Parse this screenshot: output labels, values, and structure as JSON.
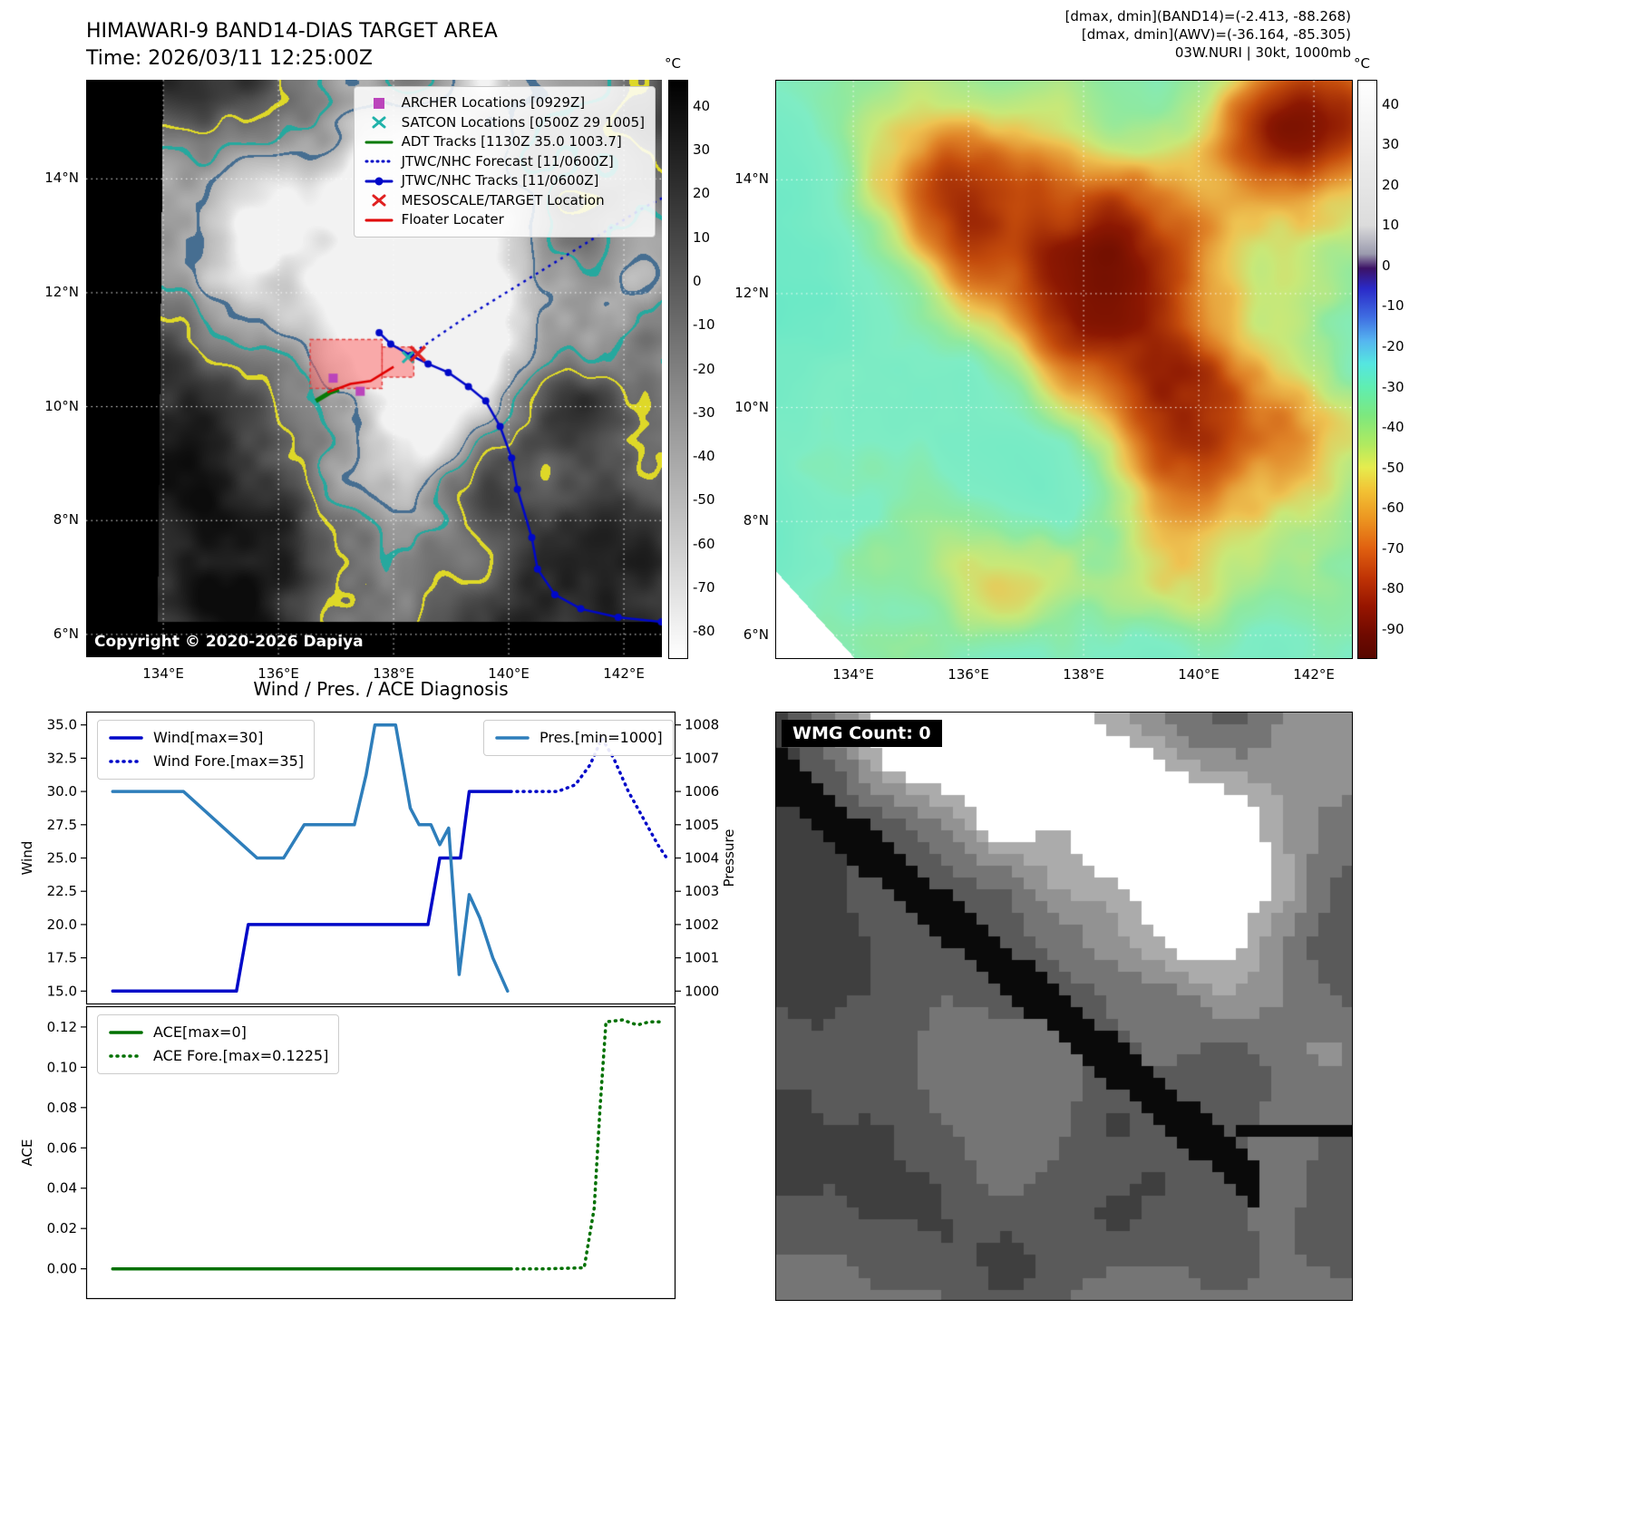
{
  "chart_data": [
    {
      "type": "line",
      "title": "Wind / Pres. / ACE Diagnosis",
      "subplot": "wind_pressure",
      "ylabel": "Wind",
      "y2label": "Pressure",
      "ylim": [
        14.0,
        36.0
      ],
      "yticks": [
        15.0,
        17.5,
        20.0,
        22.5,
        25.0,
        27.5,
        30.0,
        32.5,
        35.0
      ],
      "ytick_decimals": 1,
      "y2lim": [
        999.6,
        1008.4
      ],
      "y2ticks": [
        1000,
        1001,
        1002,
        1003,
        1004,
        1005,
        1006,
        1007,
        1008
      ],
      "y2tick_decimals": 0,
      "x_normalized": true,
      "grid": false,
      "legend_left": [
        0,
        1
      ],
      "legend_right": [
        2
      ],
      "series": [
        {
          "name": "Wind[max=30]",
          "axis": "left",
          "color": "#0008c8",
          "dash": false,
          "width": 3.5,
          "points": [
            [
              0.045,
              15
            ],
            [
              0.255,
              15
            ],
            [
              0.275,
              20
            ],
            [
              0.58,
              20
            ],
            [
              0.6,
              25
            ],
            [
              0.635,
              25
            ],
            [
              0.65,
              30
            ],
            [
              0.72,
              30
            ]
          ]
        },
        {
          "name": "Wind Fore.[max=35]",
          "axis": "left",
          "color": "#0008c8",
          "dash": true,
          "width": 3.5,
          "points": [
            [
              0.72,
              30
            ],
            [
              0.8,
              30
            ],
            [
              0.83,
              30.5
            ],
            [
              0.855,
              32
            ],
            [
              0.875,
              34
            ],
            [
              0.895,
              32.5
            ],
            [
              0.92,
              30
            ],
            [
              0.945,
              28
            ],
            [
              0.97,
              26
            ],
            [
              0.985,
              25
            ]
          ]
        },
        {
          "name": "Pres.[min=1000]",
          "axis": "right",
          "color": "#2e7ebb",
          "dash": false,
          "width": 3.5,
          "points": [
            [
              0.045,
              1006
            ],
            [
              0.165,
              1006
            ],
            [
              0.29,
              1004
            ],
            [
              0.335,
              1004
            ],
            [
              0.37,
              1005
            ],
            [
              0.455,
              1005
            ],
            [
              0.475,
              1006.5
            ],
            [
              0.49,
              1008
            ],
            [
              0.525,
              1008
            ],
            [
              0.55,
              1005.5
            ],
            [
              0.565,
              1005
            ],
            [
              0.585,
              1005
            ],
            [
              0.6,
              1004.4
            ],
            [
              0.615,
              1004.9
            ],
            [
              0.633,
              1000.5
            ],
            [
              0.65,
              1002.9
            ],
            [
              0.668,
              1002.2
            ],
            [
              0.69,
              1001
            ],
            [
              0.715,
              1000
            ]
          ]
        }
      ]
    },
    {
      "type": "line",
      "subplot": "ace",
      "ylabel": "ACE",
      "ylim": [
        -0.015,
        0.1303
      ],
      "yticks": [
        0.0,
        0.02,
        0.04,
        0.06,
        0.08,
        0.1,
        0.12
      ],
      "ytick_decimals": 2,
      "x_normalized": true,
      "grid": false,
      "legend_left": [
        0,
        1
      ],
      "series": [
        {
          "name": "ACE[max=0]",
          "axis": "left",
          "color": "#007000",
          "dash": false,
          "width": 3.5,
          "points": [
            [
              0.045,
              0
            ],
            [
              0.72,
              0
            ]
          ]
        },
        {
          "name": "ACE Fore.[max=0.1225]",
          "axis": "left",
          "color": "#007000",
          "dash": true,
          "width": 3.5,
          "points": [
            [
              0.72,
              0
            ],
            [
              0.78,
              0
            ],
            [
              0.845,
              0.0005
            ],
            [
              0.862,
              0.03
            ],
            [
              0.872,
              0.08
            ],
            [
              0.882,
              0.1225
            ],
            [
              0.91,
              0.1235
            ],
            [
              0.935,
              0.121
            ],
            [
              0.955,
              0.1225
            ],
            [
              0.975,
              0.1225
            ]
          ]
        }
      ]
    }
  ],
  "panel_band14": {
    "title": "HIMAWARI-9 BAND14-DIAS TARGET AREA",
    "time_line": "Time: 2026/03/11 12:25:00Z",
    "copyright": "Copyright © 2020-2026 Dapiya",
    "colorbar_unit": "°C",
    "colorbar_ticks": [
      40,
      30,
      20,
      10,
      0,
      -10,
      -20,
      -30,
      -40,
      -50,
      -60,
      -70,
      -80
    ],
    "colorbar_range": [
      46,
      -86
    ],
    "colorbar_stops": [
      [
        0,
        "#000000"
      ],
      [
        1,
        "#ffffff"
      ]
    ],
    "lat_ticks": [
      14,
      12,
      10,
      8,
      6
    ],
    "lon_ticks": [
      134,
      136,
      138,
      140,
      142
    ],
    "lat_tick_labels": [
      "14°N",
      "12°N",
      "10°N",
      "8°N",
      "6°N"
    ],
    "lon_tick_labels": [
      "134°E",
      "136°E",
      "138°E",
      "140°E",
      "142°E"
    ],
    "map_bounds": {
      "lon_min": 132.66,
      "lon_max": 142.66,
      "lat_min": 5.6,
      "lat_max": 15.74
    },
    "legend": [
      {
        "label": "ARCHER Locations [0929Z]",
        "marker": "square",
        "color": "#bb44bb"
      },
      {
        "label": "SATCON Locations [0500Z 29 1005]",
        "marker": "x",
        "color": "#20b2aa"
      },
      {
        "label": "ADT Tracks [1130Z 35.0 1003.7]",
        "marker": "line",
        "color": "#067a06"
      },
      {
        "label": "JTWC/NHC Forecast [11/0600Z]",
        "marker": "dotted-line",
        "color": "#0008c8"
      },
      {
        "label": "JTWC/NHC Tracks [11/0600Z]",
        "marker": "line-marker",
        "color": "#0008c8"
      },
      {
        "label": "MESOSCALE/TARGET Location",
        "marker": "x",
        "color": "#e02020"
      },
      {
        "label": "Floater Locater",
        "marker": "line",
        "color": "#e00000"
      }
    ],
    "track": [
      [
        137.75,
        11.3
      ],
      [
        137.95,
        11.1
      ],
      [
        138.3,
        10.9
      ],
      [
        138.6,
        10.75
      ],
      [
        138.95,
        10.6
      ],
      [
        139.3,
        10.35
      ],
      [
        139.6,
        10.1
      ],
      [
        139.85,
        9.65
      ],
      [
        140.05,
        9.1
      ],
      [
        140.15,
        8.55
      ],
      [
        140.4,
        7.7
      ],
      [
        140.5,
        7.15
      ],
      [
        140.8,
        6.7
      ],
      [
        141.25,
        6.45
      ],
      [
        141.9,
        6.3
      ],
      [
        142.65,
        6.22
      ]
    ],
    "forecast_track": [
      [
        138.35,
        10.95
      ],
      [
        139.15,
        11.5
      ],
      [
        139.95,
        12.0
      ],
      [
        140.75,
        12.5
      ],
      [
        141.55,
        13.0
      ],
      [
        142.35,
        13.5
      ],
      [
        142.66,
        13.66
      ]
    ],
    "adt_track": [
      [
        136.65,
        10.1
      ],
      [
        136.9,
        10.25
      ],
      [
        137.05,
        10.3
      ]
    ],
    "floater_line": [
      [
        136.85,
        10.25
      ],
      [
        137.25,
        10.4
      ],
      [
        137.6,
        10.45
      ],
      [
        138.0,
        10.7
      ]
    ],
    "target_boxes": [
      {
        "lon0": 136.55,
        "lat0": 10.32,
        "lon1": 137.8,
        "lat1": 11.18
      },
      {
        "lon0": 137.8,
        "lat0": 10.52,
        "lon1": 138.35,
        "lat1": 11.05
      }
    ],
    "mesoscale_x": [
      138.42,
      10.93
    ],
    "satcon_x": [
      [
        138.25,
        10.87
      ]
    ],
    "archer_squares": [
      [
        136.95,
        10.5
      ],
      [
        137.42,
        10.27
      ]
    ]
  },
  "panel_awv": {
    "header_lines": [
      "[dmax, dmin](BAND14)=(-2.413, -88.268)",
      "[dmax, dmin](AWV)=(-36.164, -85.305)",
      "03W.NURI | 30kt, 1000mb"
    ],
    "colorbar_unit": "°C",
    "colorbar_ticks": [
      40,
      30,
      20,
      10,
      0,
      -10,
      -20,
      -30,
      -40,
      -50,
      -60,
      -70,
      -80,
      -90
    ],
    "colorbar_range": [
      46,
      -97
    ],
    "colorbar_stops": [
      [
        0,
        "#ffffff"
      ],
      [
        0.25,
        "#dcdcdc"
      ],
      [
        0.3,
        "#9b9bae"
      ],
      [
        0.325,
        "#3c1266"
      ],
      [
        0.36,
        "#2a2ac8"
      ],
      [
        0.41,
        "#3f6ee2"
      ],
      [
        0.45,
        "#55b4f0"
      ],
      [
        0.49,
        "#55e6e0"
      ],
      [
        0.53,
        "#5feeb2"
      ],
      [
        0.58,
        "#7de87e"
      ],
      [
        0.63,
        "#b0ea60"
      ],
      [
        0.67,
        "#e6ec4e"
      ],
      [
        0.71,
        "#f2c234"
      ],
      [
        0.76,
        "#ec9420"
      ],
      [
        0.81,
        "#e06010"
      ],
      [
        0.86,
        "#c03405"
      ],
      [
        0.91,
        "#971500"
      ],
      [
        0.96,
        "#6f0a00"
      ],
      [
        1,
        "#570700"
      ]
    ],
    "lat_ticks": [
      14,
      12,
      10,
      8,
      6
    ],
    "lon_ticks": [
      134,
      136,
      138,
      140,
      142
    ],
    "lat_tick_labels": [
      "14°N",
      "12°N",
      "10°N",
      "8°N",
      "6°N"
    ],
    "lon_tick_labels": [
      "134°E",
      "136°E",
      "138°E",
      "140°E",
      "142°E"
    ],
    "map_bounds": {
      "lon_min": 132.66,
      "lon_max": 142.66,
      "lat_min": 5.6,
      "lat_max": 15.74
    }
  },
  "panel_wmg": {
    "label": "WMG Count: 0"
  }
}
